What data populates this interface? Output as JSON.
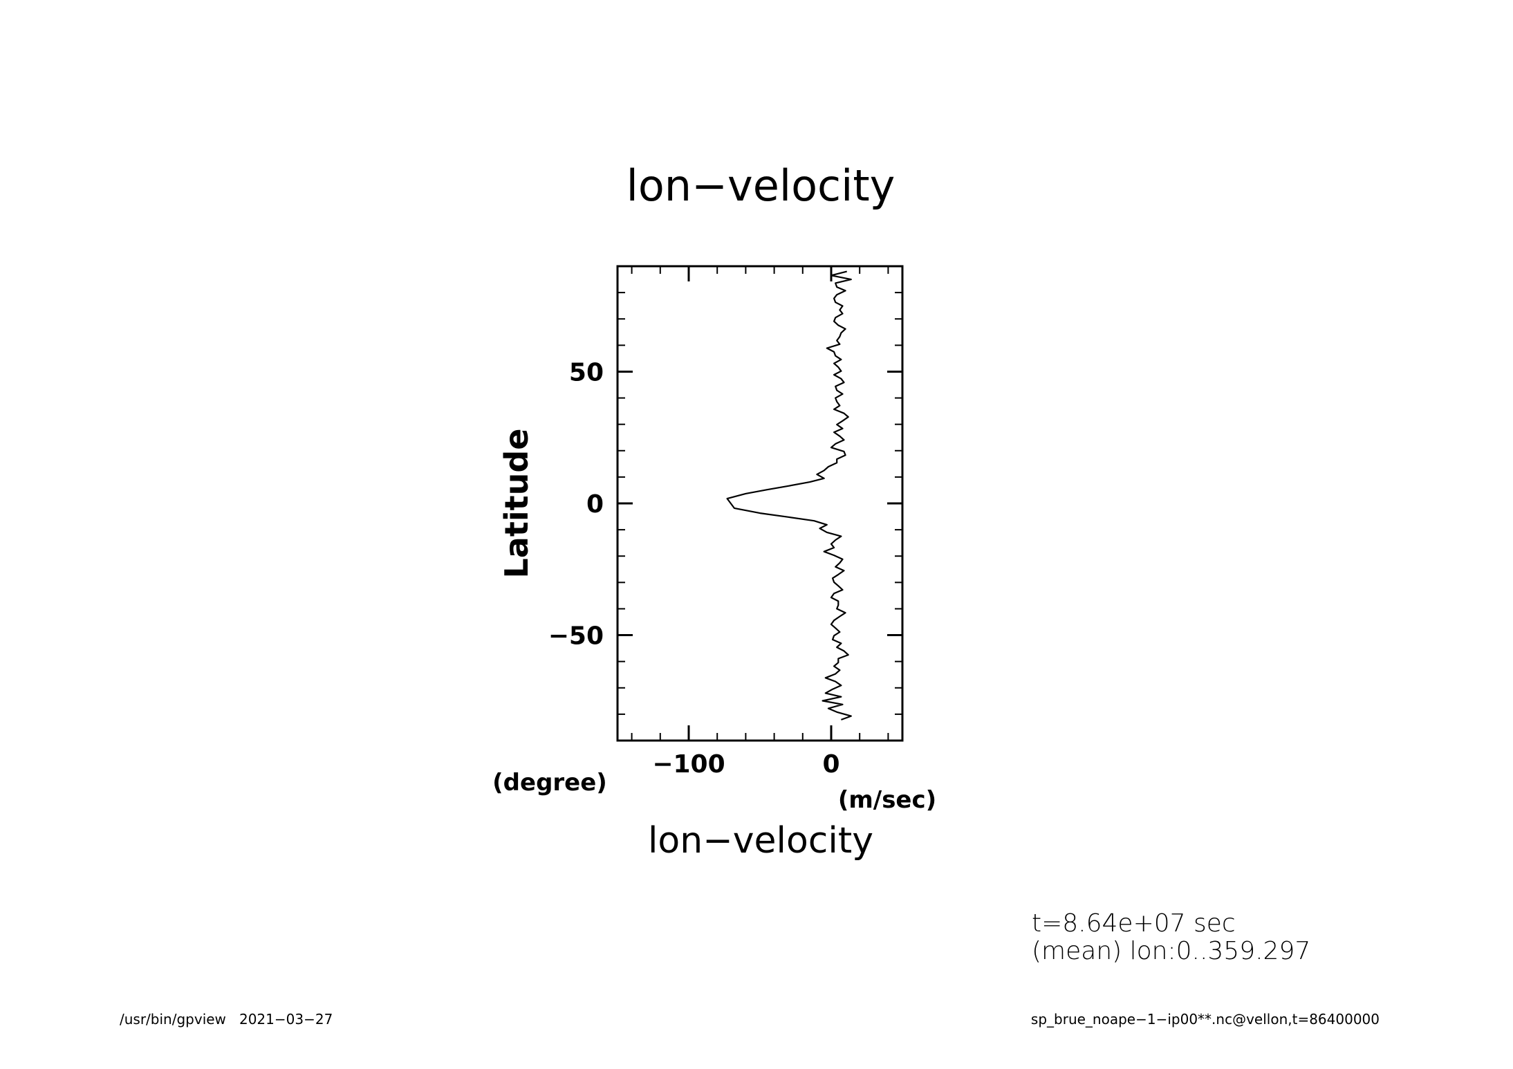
{
  "chart_data": {
    "type": "line",
    "title": "lon−velocity",
    "xlabel": "lon−velocity",
    "xunits": "(m/sec)",
    "ylabel": "Latitude",
    "yunits": "(degree)",
    "xlim": [
      -150,
      50
    ],
    "ylim": [
      -90,
      90
    ],
    "xticks": [
      {
        "value": -100,
        "label": "−100"
      },
      {
        "value": 0,
        "label": "0"
      }
    ],
    "yticks": [
      {
        "value": 50,
        "label": "50"
      },
      {
        "value": 0,
        "label": "0"
      },
      {
        "value": -50,
        "label": "−50"
      }
    ],
    "grid": false,
    "series": [
      {
        "x": [
          11,
          0,
          14,
          3,
          4,
          10,
          4,
          2,
          3,
          8,
          6,
          8,
          3,
          2,
          5,
          10,
          7,
          6,
          4,
          6,
          -3,
          2,
          3,
          7,
          2,
          5,
          7,
          2,
          7,
          9,
          3,
          4,
          8,
          3,
          4,
          6,
          2,
          9,
          12,
          8,
          4,
          8,
          2,
          6,
          9,
          3,
          0,
          9,
          10,
          4,
          4,
          -2,
          -5,
          -10,
          -5,
          -15,
          -30,
          -45,
          -60,
          -73,
          -68,
          -50,
          -30,
          -12,
          -3,
          -8,
          -3,
          7,
          3,
          0,
          2,
          -5,
          2,
          8,
          6,
          3,
          9,
          5,
          1,
          2,
          5,
          8,
          2,
          0,
          5,
          5,
          4,
          10,
          6,
          2,
          0,
          3,
          6,
          2,
          1,
          7,
          4,
          9,
          12,
          5,
          5,
          2,
          6,
          3,
          -4,
          3,
          7,
          1,
          -4,
          7,
          -6,
          8,
          -2,
          4,
          14,
          7
        ],
        "y": [
          88,
          86.5,
          85,
          83.6,
          82.1,
          80.7,
          79.2,
          77.8,
          76.3,
          74.9,
          73.4,
          72,
          70.5,
          69.1,
          67.6,
          66.2,
          64.7,
          63.3,
          61.8,
          60.4,
          58.9,
          57.5,
          56,
          54.6,
          53.1,
          51.7,
          50.2,
          48.8,
          47.3,
          45.9,
          44.4,
          42.9,
          41.5,
          40,
          38.6,
          37.1,
          35.7,
          34.2,
          32.8,
          31.3,
          29.9,
          28.4,
          27,
          25.5,
          24.1,
          22.6,
          21.2,
          19.7,
          18.3,
          16.8,
          15.4,
          13.9,
          12.5,
          11,
          9.5,
          8.1,
          6.6,
          5.2,
          3.7,
          1.8,
          -1.8,
          -3.7,
          -5.2,
          -6.6,
          -8.1,
          -9.5,
          -11,
          -12.5,
          -13.9,
          -15.4,
          -16.8,
          -18.3,
          -19.7,
          -21.2,
          -22.6,
          -24.1,
          -25.5,
          -27,
          -28.4,
          -29.9,
          -31.3,
          -32.8,
          -34.2,
          -35.7,
          -37.1,
          -38.6,
          -40,
          -41.5,
          -42.9,
          -44.4,
          -45.9,
          -47.3,
          -48.8,
          -50.2,
          -51.7,
          -53.1,
          -54.6,
          -56,
          -57.5,
          -58.9,
          -60.4,
          -61.8,
          -63.3,
          -64.7,
          -66.2,
          -67.6,
          -69.1,
          -70.5,
          -72,
          -73.4,
          -74.9,
          -76.3,
          -77.8,
          -79.2,
          -80.7,
          -82.1
        ]
      }
    ]
  },
  "annotations": {
    "time": "t=8.64e+07 sec",
    "mean": "(mean) lon:0..359.297"
  },
  "footer": {
    "left": "/usr/bin/gpview   2021−03−27",
    "right": "sp_brue_noape−1−ip00**.nc@vellon,t=86400000"
  }
}
